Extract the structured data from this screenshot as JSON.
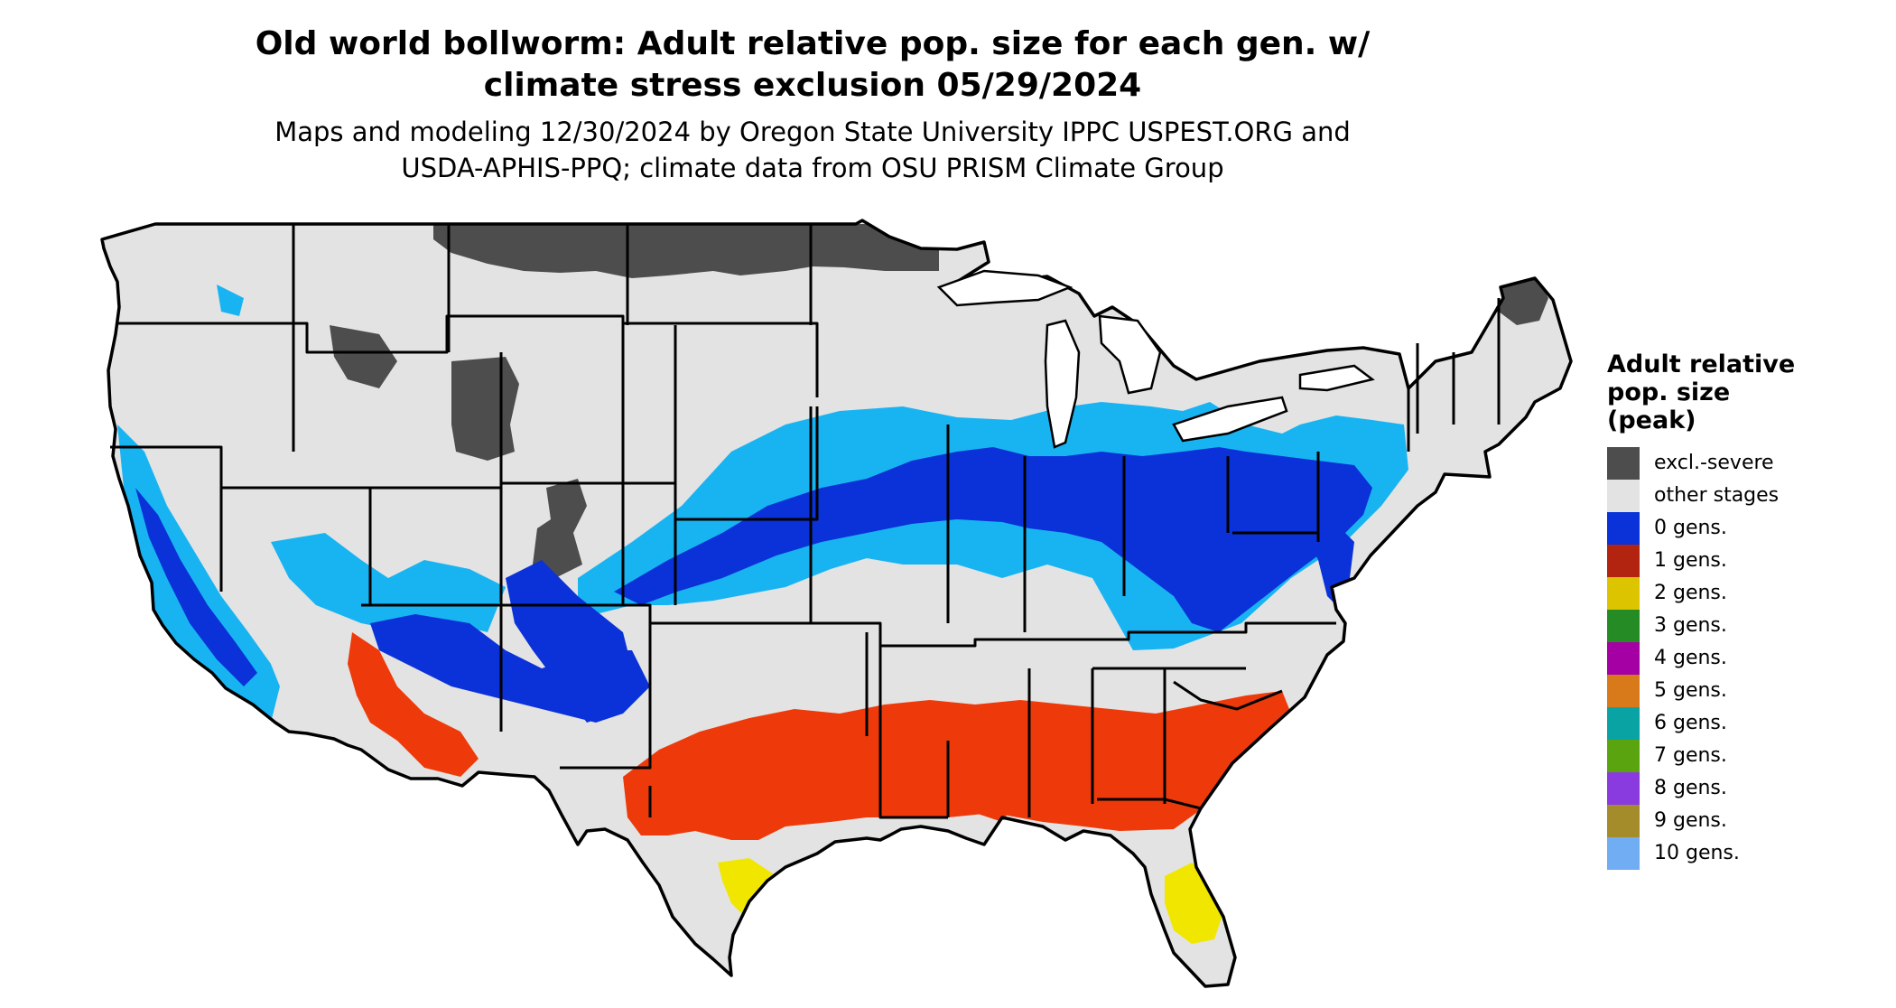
{
  "title_line1": "Old world bollworm: Adult relative pop. size for each gen. w/",
  "title_line2": "climate stress exclusion 05/29/2024",
  "subtitle_line1": "Maps and modeling 12/30/2024 by Oregon State University IPPC USPEST.ORG and",
  "subtitle_line2": "USDA-APHIS-PPQ; climate data from OSU PRISM Climate Group",
  "legend": {
    "title_lines": [
      "Adult relative",
      "pop. size",
      "(peak)"
    ],
    "items": [
      {
        "label": "excl.-severe",
        "color": "#4d4d4d"
      },
      {
        "label": "other stages",
        "color": "#e3e3e3"
      },
      {
        "label": "0 gens.",
        "color": "#0a32d8"
      },
      {
        "label": "1 gens.",
        "color": "#b22410"
      },
      {
        "label": "2 gens.",
        "color": "#ddc400"
      },
      {
        "label": "3 gens.",
        "color": "#258b25"
      },
      {
        "label": "4 gens.",
        "color": "#a400a4"
      },
      {
        "label": "5 gens.",
        "color": "#d97a1a"
      },
      {
        "label": "6 gens.",
        "color": "#0aa3a3"
      },
      {
        "label": "7 gens.",
        "color": "#5aa50f"
      },
      {
        "label": "8 gens.",
        "color": "#8a3be0"
      },
      {
        "label": "9 gens.",
        "color": "#a58c2a"
      },
      {
        "label": "10 gens.",
        "color": "#70adf2"
      }
    ]
  },
  "map_colors": {
    "land": "#e3e3e3",
    "excluded": "#4d4d4d",
    "zero_gen_light": "#18b4f2",
    "zero_gen_dark": "#0a32d8",
    "one_gen": "#ee3a0a",
    "two_gen": "#f0e600",
    "three_gen": "#258b25",
    "border": "#000000"
  }
}
